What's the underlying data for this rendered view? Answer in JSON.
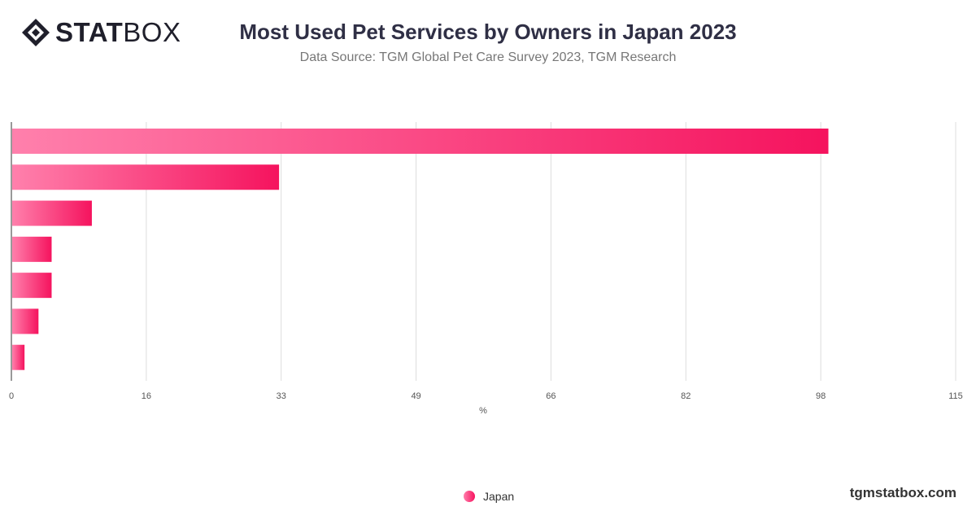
{
  "brand": {
    "logo_bold": "STAT",
    "logo_light": "BOX",
    "footer": "tgmstatbox.com"
  },
  "colors": {
    "bar_start": "#ff80ac",
    "bar_end": "#f5135e",
    "grid": "#dddddd"
  },
  "chart_data": {
    "type": "bar",
    "orientation": "horizontal",
    "title": "Most Used Pet Services by Owners in Japan 2023",
    "subtitle": "Data Source: TGM Global Pet Care Survey 2023, TGM Research",
    "xlabel": "%",
    "xlim": [
      0,
      115
    ],
    "xticks": [
      "0",
      "16",
      "33",
      "49",
      "66",
      "82",
      "98",
      "115"
    ],
    "grid": true,
    "legend_position": "bottom-center",
    "series": [
      {
        "name": "Japan",
        "values": [
          99.5,
          32.6,
          9.8,
          4.9,
          4.9,
          3.3,
          1.6
        ]
      }
    ]
  }
}
